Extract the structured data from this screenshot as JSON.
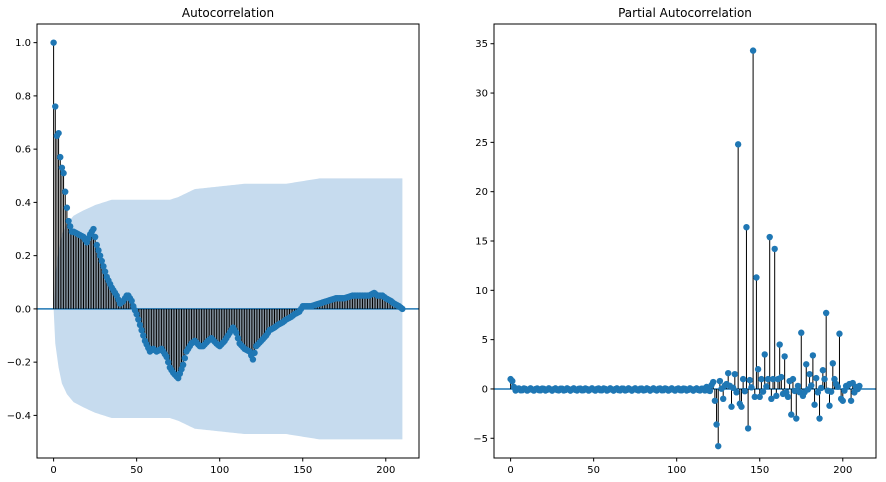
{
  "chart_data": [
    {
      "type": "stem",
      "title": "Autocorrelation",
      "xlabel": "",
      "ylabel": "",
      "xlim": [
        -10,
        220
      ],
      "ylim": [
        -0.56,
        1.07
      ],
      "xticks": [
        0,
        50,
        100,
        150,
        200
      ],
      "yticks": [
        -0.4,
        -0.2,
        0.0,
        0.2,
        0.4,
        0.6,
        0.8,
        1.0
      ],
      "ytick_labels": [
        "−0.4",
        "−0.2",
        "0.0",
        "0.2",
        "0.4",
        "0.6",
        "0.8",
        "1.0"
      ],
      "xtick_labels": [
        "0",
        "50",
        "100",
        "150",
        "200"
      ],
      "grid": false,
      "confidence_band": {
        "lags": [
          0,
          1,
          3,
          5,
          8,
          12,
          18,
          25,
          30,
          35,
          42,
          50,
          60,
          70,
          75,
          85,
          100,
          115,
          130,
          140,
          150,
          160,
          170,
          180,
          190,
          200,
          210
        ],
        "upper": [
          0.0,
          0.13,
          0.22,
          0.28,
          0.32,
          0.35,
          0.37,
          0.39,
          0.4,
          0.41,
          0.41,
          0.41,
          0.41,
          0.41,
          0.42,
          0.45,
          0.46,
          0.47,
          0.47,
          0.47,
          0.48,
          0.49,
          0.49,
          0.49,
          0.49,
          0.49,
          0.49
        ],
        "lower": [
          0.0,
          -0.13,
          -0.22,
          -0.28,
          -0.32,
          -0.35,
          -0.37,
          -0.39,
          -0.4,
          -0.41,
          -0.41,
          -0.41,
          -0.41,
          -0.41,
          -0.42,
          -0.45,
          -0.46,
          -0.47,
          -0.47,
          -0.47,
          -0.48,
          -0.49,
          -0.49,
          -0.49,
          -0.49,
          -0.49,
          -0.49
        ]
      },
      "keypoints": {
        "lags": [
          0,
          1,
          2,
          3,
          4,
          5,
          6,
          7,
          8,
          9,
          10,
          11,
          12,
          15,
          18,
          20,
          22,
          24,
          25,
          26,
          28,
          30,
          32,
          35,
          38,
          40,
          42,
          44,
          45,
          47,
          48,
          50,
          52,
          55,
          58,
          60,
          62,
          65,
          68,
          70,
          72,
          75,
          78,
          80,
          83,
          85,
          88,
          90,
          93,
          95,
          98,
          100,
          103,
          105,
          108,
          110,
          112,
          115,
          118,
          120,
          122,
          125,
          128,
          130,
          133,
          135,
          138,
          140,
          143,
          145,
          148,
          150,
          155,
          160,
          165,
          170,
          175,
          180,
          185,
          190,
          193,
          195,
          198,
          200,
          203,
          205,
          208,
          210
        ],
        "acf": [
          1.0,
          0.76,
          0.65,
          0.66,
          0.57,
          0.53,
          0.51,
          0.44,
          0.38,
          0.33,
          0.31,
          0.29,
          0.29,
          0.28,
          0.27,
          0.25,
          0.28,
          0.3,
          0.27,
          0.24,
          0.2,
          0.16,
          0.12,
          0.08,
          0.05,
          0.02,
          0.03,
          0.05,
          0.05,
          0.03,
          0.01,
          -0.02,
          -0.06,
          -0.12,
          -0.16,
          -0.15,
          -0.16,
          -0.15,
          -0.18,
          -0.22,
          -0.24,
          -0.26,
          -0.21,
          -0.16,
          -0.13,
          -0.12,
          -0.14,
          -0.14,
          -0.12,
          -0.11,
          -0.13,
          -0.14,
          -0.12,
          -0.1,
          -0.07,
          -0.09,
          -0.13,
          -0.15,
          -0.16,
          -0.19,
          -0.14,
          -0.12,
          -0.1,
          -0.08,
          -0.07,
          -0.06,
          -0.05,
          -0.04,
          -0.03,
          -0.02,
          -0.01,
          0.01,
          0.01,
          0.02,
          0.03,
          0.04,
          0.04,
          0.05,
          0.05,
          0.05,
          0.06,
          0.05,
          0.05,
          0.04,
          0.03,
          0.02,
          0.01,
          0.0
        ]
      }
    },
    {
      "type": "stem",
      "title": "Partial Autocorrelation",
      "xlabel": "",
      "ylabel": "",
      "xlim": [
        -10,
        220
      ],
      "ylim": [
        -7.0,
        37.0
      ],
      "xticks": [
        0,
        50,
        100,
        150,
        200
      ],
      "yticks": [
        -5,
        0,
        5,
        10,
        15,
        20,
        25,
        30,
        35
      ],
      "ytick_labels": [
        "−5",
        "0",
        "5",
        "10",
        "15",
        "20",
        "25",
        "30",
        "35"
      ],
      "xtick_labels": [
        "0",
        "50",
        "100",
        "150",
        "200"
      ],
      "grid": false,
      "spikes": {
        "lags": [
          0,
          1,
          2,
          118,
          120,
          121,
          122,
          123,
          124,
          125,
          126,
          128,
          130,
          131,
          133,
          135,
          137,
          138,
          139,
          140,
          142,
          143,
          144,
          146,
          147,
          148,
          149,
          150,
          151,
          153,
          155,
          156,
          157,
          158,
          159,
          160,
          161,
          162,
          163,
          164,
          165,
          167,
          168,
          169,
          170,
          172,
          175,
          176,
          178,
          180,
          182,
          183,
          184,
          186,
          188,
          189,
          190,
          192,
          194,
          195,
          196,
          198,
          199,
          200,
          202,
          204,
          205,
          206,
          208,
          210
        ],
        "values": [
          1.0,
          0.8,
          0.2,
          0.2,
          -0.2,
          0.4,
          0.7,
          -1.2,
          -3.6,
          -5.8,
          0.8,
          -1.0,
          0.5,
          1.6,
          -1.8,
          1.5,
          24.8,
          -1.5,
          -1.8,
          1.0,
          16.4,
          -4.0,
          0.9,
          34.3,
          -0.8,
          11.3,
          2.0,
          -0.8,
          1.0,
          3.5,
          1.0,
          15.4,
          -1.0,
          1.0,
          14.2,
          -0.7,
          1.0,
          4.5,
          1.2,
          -0.5,
          3.3,
          -0.8,
          0.8,
          -2.6,
          1.0,
          -3.0,
          5.7,
          -0.7,
          2.5,
          1.5,
          3.4,
          -1.6,
          1.1,
          -3.0,
          1.9,
          1.0,
          7.7,
          -1.7,
          2.6,
          1.0,
          0.5,
          5.6,
          -1.0,
          -1.2,
          0.3,
          0.5,
          -1.2,
          0.6,
          0.2,
          0.3
        ]
      }
    }
  ]
}
